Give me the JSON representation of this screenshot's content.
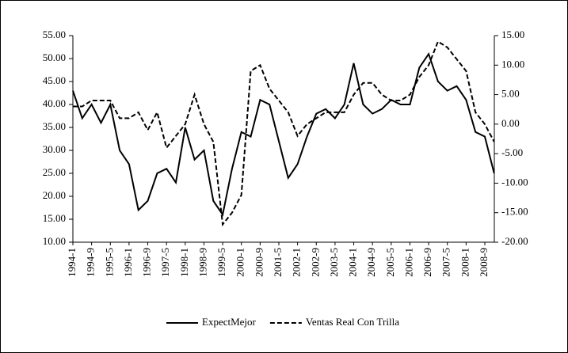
{
  "chart_data": {
    "type": "line",
    "categories": [
      "1994-1",
      null,
      "1994-9",
      null,
      "1995-5",
      null,
      "1996-1",
      null,
      "1996-9",
      null,
      "1997-5",
      null,
      "1998-1",
      null,
      "1998-9",
      null,
      "1999-5",
      null,
      "2000-1",
      null,
      "2000-9",
      null,
      "2001-5",
      null,
      "2002-1",
      null,
      "2002-9",
      null,
      "2003-5",
      null,
      "2004-1",
      null,
      "2004-9",
      null,
      "2005-5",
      null,
      "2006-1",
      null,
      "2006-9",
      null,
      "2007-5",
      null,
      "2008-1",
      null,
      "2008-9",
      null
    ],
    "series": [
      {
        "name": "ExpectMejor",
        "color": "#000000",
        "linestyle": "solid",
        "values": [
          43,
          37,
          40,
          36,
          40,
          30,
          27,
          17,
          19,
          25,
          26,
          23,
          35,
          28,
          30,
          19,
          16,
          26,
          34,
          33,
          41,
          40,
          32,
          24,
          27,
          33,
          38,
          39,
          37,
          40,
          49,
          40,
          38,
          39,
          41,
          40,
          40,
          48,
          51,
          45,
          43,
          44,
          41,
          34,
          33,
          25
        ]
      },
      {
        "name": "Ventas Real Con Trilla",
        "color": "#000000",
        "linestyle": "dashed",
        "axis": "y2",
        "values": [
          3,
          3,
          4,
          4,
          4,
          1,
          1,
          2,
          -1,
          2,
          -4,
          -2,
          0,
          5,
          0,
          -3,
          -17,
          -15,
          -12,
          9,
          10,
          6,
          4,
          2,
          -2,
          0,
          1,
          2,
          2,
          2,
          5,
          7,
          7,
          5,
          4,
          4,
          5,
          8,
          10,
          14,
          13,
          11,
          9,
          2,
          0,
          -3
        ]
      }
    ],
    "ylim": [
      10,
      55
    ],
    "yticks": [
      {
        "value": 10,
        "label": "10.00"
      },
      {
        "value": 15,
        "label": "15.00"
      },
      {
        "value": 20,
        "label": "20.00"
      },
      {
        "value": 25,
        "label": "25.00"
      },
      {
        "value": 30,
        "label": "30.00"
      },
      {
        "value": 35,
        "label": "35.00"
      },
      {
        "value": 40,
        "label": "40.00"
      },
      {
        "value": 45,
        "label": "45.00"
      },
      {
        "value": 50,
        "label": "50.00"
      },
      {
        "value": 55,
        "label": "55.00"
      }
    ],
    "y2lim": [
      -20,
      15
    ],
    "y2ticks": [
      {
        "value": -20,
        "label": "-20.00"
      },
      {
        "value": -15,
        "label": "-15.00"
      },
      {
        "value": -10,
        "label": "-10.00"
      },
      {
        "value": -5,
        "label": "-5.00"
      },
      {
        "value": 0,
        "label": "0.00"
      },
      {
        "value": 5,
        "label": "5.00"
      },
      {
        "value": 10,
        "label": "10.00"
      },
      {
        "value": 15,
        "label": "15.00"
      }
    ],
    "legend": "bottom"
  }
}
